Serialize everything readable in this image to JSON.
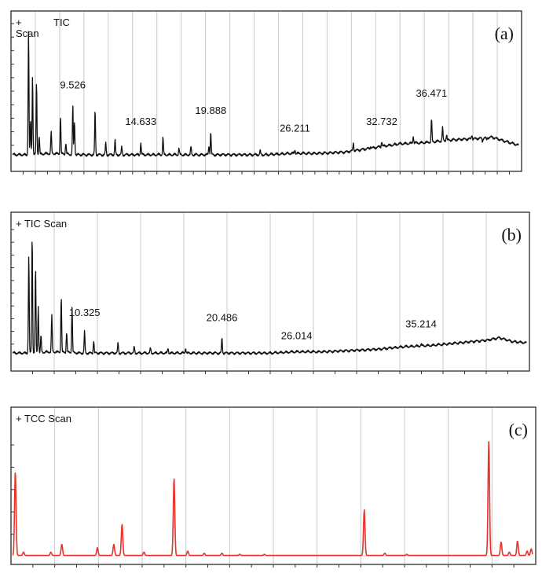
{
  "chart_data": [
    {
      "type": "line",
      "panel_letter": "(a)",
      "title": "TIC",
      "title_prefix": "+ Scan",
      "color": "#111111",
      "grid": true,
      "xlim": [
        5,
        43
      ],
      "ylim": [
        0,
        100
      ],
      "baseline": [
        [
          5.0,
          3
        ],
        [
          6.0,
          3
        ],
        [
          8.0,
          4
        ],
        [
          10.0,
          3
        ],
        [
          12.0,
          3
        ],
        [
          14.0,
          3
        ],
        [
          16.0,
          3
        ],
        [
          18.0,
          3
        ],
        [
          20.0,
          3
        ],
        [
          22.0,
          3
        ],
        [
          24.0,
          3
        ],
        [
          26.0,
          4
        ],
        [
          28.0,
          4
        ],
        [
          30.0,
          5
        ],
        [
          32.0,
          8
        ],
        [
          34.0,
          11
        ],
        [
          36.0,
          12
        ],
        [
          38.0,
          14
        ],
        [
          40.0,
          15
        ],
        [
          41.0,
          16
        ],
        [
          42.0,
          13
        ],
        [
          43.0,
          10
        ]
      ],
      "peaks": [
        {
          "x": 6.2,
          "y": 96
        },
        {
          "x": 6.5,
          "y": 62
        },
        {
          "x": 6.8,
          "y": 57
        },
        {
          "x": 6.35,
          "y": 28
        },
        {
          "x": 7.0,
          "y": 17
        },
        {
          "x": 7.9,
          "y": 20
        },
        {
          "x": 8.6,
          "y": 32
        },
        {
          "x": 9.0,
          "y": 12
        },
        {
          "x": 9.526,
          "y": 39
        },
        {
          "x": 9.65,
          "y": 28
        },
        {
          "x": 11.2,
          "y": 36
        },
        {
          "x": 12.0,
          "y": 12
        },
        {
          "x": 12.7,
          "y": 14
        },
        {
          "x": 13.2,
          "y": 9
        },
        {
          "x": 14.633,
          "y": 12
        },
        {
          "x": 16.3,
          "y": 16
        },
        {
          "x": 17.5,
          "y": 8
        },
        {
          "x": 18.4,
          "y": 9
        },
        {
          "x": 19.888,
          "y": 20
        },
        {
          "x": 19.75,
          "y": 10
        },
        {
          "x": 23.6,
          "y": 6
        },
        {
          "x": 26.211,
          "y": 7
        },
        {
          "x": 30.6,
          "y": 12
        },
        {
          "x": 31.9,
          "y": 9
        },
        {
          "x": 32.732,
          "y": 13
        },
        {
          "x": 33.6,
          "y": 10
        },
        {
          "x": 35.1,
          "y": 17
        },
        {
          "x": 36.471,
          "y": 30
        },
        {
          "x": 37.3,
          "y": 23
        },
        {
          "x": 37.6,
          "y": 18
        },
        {
          "x": 39.5,
          "y": 18
        },
        {
          "x": 40.3,
          "y": 13
        },
        {
          "x": 40.6,
          "y": 14
        }
      ],
      "peak_labels": [
        {
          "text": "9.526",
          "x": 9.526,
          "y": 52
        },
        {
          "text": "14.633",
          "x": 14.633,
          "y": 25
        },
        {
          "text": "19.888",
          "x": 19.888,
          "y": 33
        },
        {
          "text": "26.211",
          "x": 26.211,
          "y": 20
        },
        {
          "text": "32.732",
          "x": 32.732,
          "y": 25
        },
        {
          "text": "36.471",
          "x": 36.471,
          "y": 46
        }
      ]
    },
    {
      "type": "line",
      "panel_letter": "(b)",
      "title": "+ TIC Scan",
      "color": "#111111",
      "grid": true,
      "xlim": [
        5,
        43
      ],
      "ylim": [
        0,
        100
      ],
      "baseline": [
        [
          5.0,
          3
        ],
        [
          6.0,
          3
        ],
        [
          8.0,
          4
        ],
        [
          10.0,
          3
        ],
        [
          12.0,
          3
        ],
        [
          14.0,
          3
        ],
        [
          16.0,
          3
        ],
        [
          18.0,
          3
        ],
        [
          20.0,
          3
        ],
        [
          22.0,
          3
        ],
        [
          24.0,
          3
        ],
        [
          26.0,
          4
        ],
        [
          28.0,
          4
        ],
        [
          30.0,
          5
        ],
        [
          32.0,
          6
        ],
        [
          34.0,
          8
        ],
        [
          36.0,
          9
        ],
        [
          38.0,
          11
        ],
        [
          40.0,
          13
        ],
        [
          41.0,
          15
        ],
        [
          42.0,
          12
        ],
        [
          43.0,
          11
        ]
      ],
      "peaks": [
        {
          "x": 6.2,
          "y": 80
        },
        {
          "x": 6.45,
          "y": 97
        },
        {
          "x": 6.7,
          "y": 70
        },
        {
          "x": 6.9,
          "y": 40
        },
        {
          "x": 7.1,
          "y": 17
        },
        {
          "x": 7.9,
          "y": 33
        },
        {
          "x": 8.6,
          "y": 48
        },
        {
          "x": 9.0,
          "y": 20
        },
        {
          "x": 9.4,
          "y": 40
        },
        {
          "x": 10.325,
          "y": 20
        },
        {
          "x": 11.0,
          "y": 13
        },
        {
          "x": 12.8,
          "y": 11
        },
        {
          "x": 14.0,
          "y": 8
        },
        {
          "x": 15.2,
          "y": 7
        },
        {
          "x": 16.5,
          "y": 7
        },
        {
          "x": 17.8,
          "y": 7
        },
        {
          "x": 20.486,
          "y": 15
        },
        {
          "x": 26.014,
          "y": 4
        },
        {
          "x": 35.214,
          "y": 10
        },
        {
          "x": 40.2,
          "y": 13
        }
      ],
      "peak_labels": [
        {
          "text": "10.325",
          "x": 10.325,
          "y": 32
        },
        {
          "text": "20.486",
          "x": 20.486,
          "y": 28
        },
        {
          "text": "26.014",
          "x": 26.014,
          "y": 14
        },
        {
          "text": "35.214",
          "x": 35.214,
          "y": 23
        }
      ]
    },
    {
      "type": "line",
      "panel_letter": "(c)",
      "title": "+ TCC Scan",
      "color": "#e8322c",
      "grid": true,
      "xlim": [
        5,
        43
      ],
      "ylim": [
        0,
        100
      ],
      "baseline": [
        [
          5.0,
          1
        ],
        [
          43.0,
          1
        ]
      ],
      "peaks": [
        {
          "x": 5.2,
          "y": 76
        },
        {
          "x": 5.8,
          "y": 4
        },
        {
          "x": 7.8,
          "y": 4
        },
        {
          "x": 8.6,
          "y": 11
        },
        {
          "x": 11.2,
          "y": 8
        },
        {
          "x": 12.4,
          "y": 11
        },
        {
          "x": 13.0,
          "y": 29
        },
        {
          "x": 14.6,
          "y": 4
        },
        {
          "x": 16.8,
          "y": 70
        },
        {
          "x": 17.8,
          "y": 5
        },
        {
          "x": 19.0,
          "y": 3
        },
        {
          "x": 20.3,
          "y": 3
        },
        {
          "x": 21.6,
          "y": 2
        },
        {
          "x": 23.4,
          "y": 2
        },
        {
          "x": 30.7,
          "y": 42
        },
        {
          "x": 32.2,
          "y": 3
        },
        {
          "x": 33.8,
          "y": 2
        },
        {
          "x": 39.8,
          "y": 103
        },
        {
          "x": 40.7,
          "y": 13
        },
        {
          "x": 41.3,
          "y": 4
        },
        {
          "x": 41.9,
          "y": 14
        },
        {
          "x": 42.6,
          "y": 5
        },
        {
          "x": 42.9,
          "y": 7
        }
      ],
      "peak_labels": []
    }
  ]
}
